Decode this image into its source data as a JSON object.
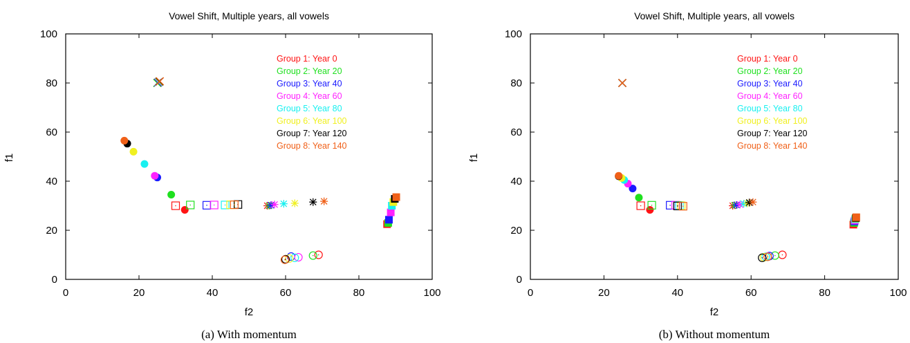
{
  "colors": {
    "Group 1": "#ff1414",
    "Group 2": "#1fe01f",
    "Group 3": "#1a1aff",
    "Group 4": "#ff22ff",
    "Group 5": "#18f0f0",
    "Group 6": "#f0f020",
    "Group 7": "#000000",
    "Group 8": "#f06018"
  },
  "chart_data": [
    {
      "type": "scatter",
      "title": "Vowel Shift, Multiple years, all vowels",
      "xlabel": "f2",
      "ylabel": "f1",
      "xlim": [
        0,
        100
      ],
      "ylim": [
        0,
        100
      ],
      "xticks": [
        0,
        20,
        40,
        60,
        80,
        100
      ],
      "yticks": [
        0,
        20,
        40,
        60,
        80,
        100
      ],
      "caption": "(a) With momentum",
      "legend_position": "top-right",
      "series": [
        {
          "name": "Group 1: Year 0",
          "points": [
            {
              "marker": "circle",
              "x": 32.5,
              "y": 28.3
            },
            {
              "marker": "square-open",
              "x": 30.0,
              "y": 30.0
            },
            {
              "marker": "asterisk",
              "x": 55.0,
              "y": 30.0
            },
            {
              "marker": "circle-open",
              "x": 69.0,
              "y": 10.0
            },
            {
              "marker": "square",
              "x": 87.7,
              "y": 22.5
            },
            {
              "marker": "cross",
              "x": 25.0,
              "y": 80.0
            }
          ]
        },
        {
          "name": "Group 2: Year 20",
          "points": [
            {
              "marker": "circle",
              "x": 28.8,
              "y": 34.5
            },
            {
              "marker": "square-open",
              "x": 34.0,
              "y": 30.3
            },
            {
              "marker": "asterisk",
              "x": 55.5,
              "y": 30.0
            },
            {
              "marker": "circle-open",
              "x": 67.5,
              "y": 9.7
            },
            {
              "marker": "square",
              "x": 88.0,
              "y": 23.0
            },
            {
              "marker": "cross",
              "x": 25.0,
              "y": 80.0
            }
          ]
        },
        {
          "name": "Group 3: Year 40",
          "points": [
            {
              "marker": "circle",
              "x": 25.0,
              "y": 41.5
            },
            {
              "marker": "square-open",
              "x": 38.5,
              "y": 30.2
            },
            {
              "marker": "asterisk",
              "x": 56.0,
              "y": 30.2
            },
            {
              "marker": "circle-open",
              "x": 61.5,
              "y": 9.3
            },
            {
              "marker": "square",
              "x": 88.2,
              "y": 24.3
            },
            {
              "marker": "cross",
              "x": 25.2,
              "y": 80.2
            }
          ]
        },
        {
          "name": "Group 4: Year 60",
          "points": [
            {
              "marker": "circle",
              "x": 24.3,
              "y": 42.2
            },
            {
              "marker": "square-open",
              "x": 40.5,
              "y": 30.3
            },
            {
              "marker": "asterisk",
              "x": 57.0,
              "y": 30.5
            },
            {
              "marker": "circle-open",
              "x": 63.5,
              "y": 9.0
            },
            {
              "marker": "square",
              "x": 88.7,
              "y": 27.3
            },
            {
              "marker": "cross",
              "x": 25.3,
              "y": 80.3
            }
          ]
        },
        {
          "name": "Group 5: Year 80",
          "points": [
            {
              "marker": "circle",
              "x": 21.5,
              "y": 47.0
            },
            {
              "marker": "square-open",
              "x": 43.5,
              "y": 30.3
            },
            {
              "marker": "asterisk",
              "x": 59.5,
              "y": 30.8
            },
            {
              "marker": "circle-open",
              "x": 62.5,
              "y": 8.8
            },
            {
              "marker": "square",
              "x": 89.0,
              "y": 30.0
            },
            {
              "marker": "cross",
              "x": 25.4,
              "y": 80.4
            }
          ]
        },
        {
          "name": "Group 6: Year 100",
          "points": [
            {
              "marker": "circle",
              "x": 18.5,
              "y": 52.0
            },
            {
              "marker": "square-open",
              "x": 45.0,
              "y": 30.4
            },
            {
              "marker": "asterisk",
              "x": 62.5,
              "y": 31.0
            },
            {
              "marker": "circle-open",
              "x": 61.0,
              "y": 8.5
            },
            {
              "marker": "square",
              "x": 89.4,
              "y": 31.5
            },
            {
              "marker": "cross",
              "x": 25.5,
              "y": 80.5
            }
          ]
        },
        {
          "name": "Group 7: Year 120",
          "points": [
            {
              "marker": "circle",
              "x": 16.8,
              "y": 55.3
            },
            {
              "marker": "square-open",
              "x": 47.0,
              "y": 30.5
            },
            {
              "marker": "asterisk",
              "x": 67.5,
              "y": 31.5
            },
            {
              "marker": "circle-open",
              "x": 60.0,
              "y": 8.2
            },
            {
              "marker": "square",
              "x": 89.8,
              "y": 32.8
            },
            {
              "marker": "cross",
              "x": 25.6,
              "y": 80.6
            }
          ]
        },
        {
          "name": "Group 8: Year 140",
          "points": [
            {
              "marker": "circle",
              "x": 16.0,
              "y": 56.5
            },
            {
              "marker": "square-open",
              "x": 46.0,
              "y": 30.4
            },
            {
              "marker": "asterisk",
              "x": 70.5,
              "y": 31.8
            },
            {
              "marker": "circle-open",
              "x": 59.8,
              "y": 8.0
            },
            {
              "marker": "square",
              "x": 90.2,
              "y": 33.5
            },
            {
              "marker": "cross",
              "x": 25.7,
              "y": 80.7
            }
          ]
        }
      ]
    },
    {
      "type": "scatter",
      "title": "Vowel Shift, Multiple years, all vowels",
      "xlabel": "f2",
      "ylabel": "f1",
      "xlim": [
        0,
        100
      ],
      "ylim": [
        0,
        100
      ],
      "xticks": [
        0,
        20,
        40,
        60,
        80,
        100
      ],
      "yticks": [
        0,
        20,
        40,
        60,
        80,
        100
      ],
      "caption": "(b) Without momentum",
      "legend_position": "top-right",
      "series": [
        {
          "name": "Group 1: Year 0",
          "points": [
            {
              "marker": "circle",
              "x": 32.5,
              "y": 28.3
            },
            {
              "marker": "square-open",
              "x": 30.0,
              "y": 30.0
            },
            {
              "marker": "asterisk",
              "x": 55.0,
              "y": 30.0
            },
            {
              "marker": "circle-open",
              "x": 68.5,
              "y": 10.0
            },
            {
              "marker": "square",
              "x": 87.8,
              "y": 22.3
            },
            {
              "marker": "cross",
              "x": 25.0,
              "y": 80.0
            }
          ]
        },
        {
          "name": "Group 2: Year 20",
          "points": [
            {
              "marker": "circle",
              "x": 29.5,
              "y": 33.3
            },
            {
              "marker": "square-open",
              "x": 33.0,
              "y": 30.2
            },
            {
              "marker": "asterisk",
              "x": 55.5,
              "y": 30.2
            },
            {
              "marker": "circle-open",
              "x": 66.5,
              "y": 9.7
            },
            {
              "marker": "square",
              "x": 88.0,
              "y": 23.0
            },
            {
              "marker": "cross",
              "x": 25.0,
              "y": 80.0
            }
          ]
        },
        {
          "name": "Group 3: Year 40",
          "points": [
            {
              "marker": "circle",
              "x": 27.8,
              "y": 37.0
            },
            {
              "marker": "square-open",
              "x": 38.0,
              "y": 30.2
            },
            {
              "marker": "asterisk",
              "x": 56.0,
              "y": 30.3
            },
            {
              "marker": "circle-open",
              "x": 65.0,
              "y": 9.5
            },
            {
              "marker": "square",
              "x": 88.1,
              "y": 23.6
            },
            {
              "marker": "cross",
              "x": 25.0,
              "y": 80.0
            }
          ]
        },
        {
          "name": "Group 4: Year 60",
          "points": [
            {
              "marker": "circle",
              "x": 26.5,
              "y": 39.0
            },
            {
              "marker": "square-open",
              "x": 39.5,
              "y": 30.2
            },
            {
              "marker": "asterisk",
              "x": 57.0,
              "y": 30.5
            },
            {
              "marker": "circle-open",
              "x": 64.5,
              "y": 9.3
            },
            {
              "marker": "square",
              "x": 88.2,
              "y": 24.0
            },
            {
              "marker": "cross",
              "x": 25.0,
              "y": 80.0
            }
          ]
        },
        {
          "name": "Group 5: Year 80",
          "points": [
            {
              "marker": "circle",
              "x": 25.5,
              "y": 40.5
            },
            {
              "marker": "square-open",
              "x": 40.5,
              "y": 30.1
            },
            {
              "marker": "asterisk",
              "x": 58.0,
              "y": 30.8
            },
            {
              "marker": "circle-open",
              "x": 64.0,
              "y": 9.2
            },
            {
              "marker": "square",
              "x": 88.3,
              "y": 24.5
            },
            {
              "marker": "cross",
              "x": 25.0,
              "y": 80.0
            }
          ]
        },
        {
          "name": "Group 6: Year 100",
          "points": [
            {
              "marker": "circle",
              "x": 24.8,
              "y": 41.3
            },
            {
              "marker": "square-open",
              "x": 41.0,
              "y": 30.0
            },
            {
              "marker": "asterisk",
              "x": 59.0,
              "y": 31.0
            },
            {
              "marker": "circle-open",
              "x": 63.5,
              "y": 9.0
            },
            {
              "marker": "square",
              "x": 88.4,
              "y": 24.8
            },
            {
              "marker": "cross",
              "x": 25.0,
              "y": 80.0
            }
          ]
        },
        {
          "name": "Group 7: Year 120",
          "points": [
            {
              "marker": "circle",
              "x": 24.0,
              "y": 42.0
            },
            {
              "marker": "square-open",
              "x": 40.0,
              "y": 29.9
            },
            {
              "marker": "asterisk",
              "x": 59.5,
              "y": 31.3
            },
            {
              "marker": "circle-open",
              "x": 63.0,
              "y": 8.8
            },
            {
              "marker": "square",
              "x": 88.5,
              "y": 25.0
            },
            {
              "marker": "cross",
              "x": 25.0,
              "y": 80.0
            }
          ]
        },
        {
          "name": "Group 8: Year 140",
          "points": [
            {
              "marker": "circle",
              "x": 24.0,
              "y": 42.2
            },
            {
              "marker": "square-open",
              "x": 41.5,
              "y": 29.8
            },
            {
              "marker": "asterisk",
              "x": 60.5,
              "y": 31.5
            },
            {
              "marker": "circle-open",
              "x": 64.5,
              "y": 9.2
            },
            {
              "marker": "square",
              "x": 88.6,
              "y": 25.3
            },
            {
              "marker": "cross",
              "x": 25.0,
              "y": 80.0
            }
          ]
        }
      ]
    }
  ]
}
